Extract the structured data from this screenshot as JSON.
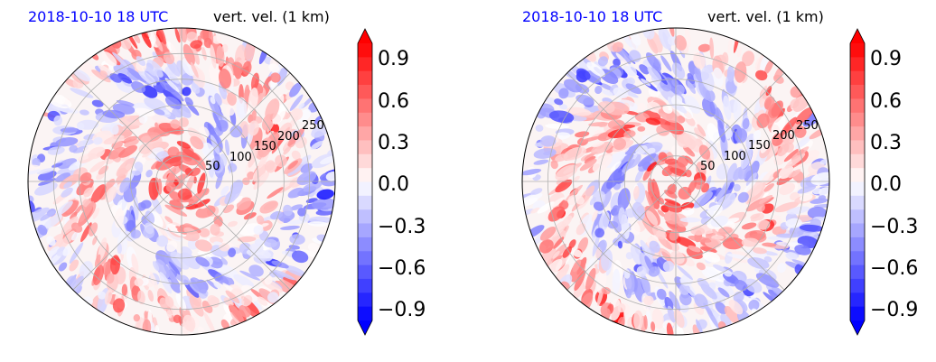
{
  "colors": {
    "positive": "#ff0000",
    "negative": "#0000ff",
    "zero": "#ffffff",
    "grid": "#b0b0b0",
    "date_title": "#0000ff",
    "var_title": "#000000"
  },
  "chart_data": [
    {
      "type": "heatmap",
      "projection": "polar",
      "date_label": "2018-10-10 18 UTC",
      "variable_label": "vert. vel. (1 km)",
      "radial_ticks": [
        "50",
        "100",
        "150",
        "200",
        "250"
      ],
      "rlim": [
        0,
        300
      ],
      "colorbar": {
        "ticks": [
          "−0.9",
          "−0.6",
          "−0.3",
          "0.0",
          "0.3",
          "0.6",
          "0.9"
        ],
        "range": [
          -1.0,
          1.0
        ],
        "extend": "both",
        "cmap": "bwr"
      },
      "grid": true
    },
    {
      "type": "heatmap",
      "projection": "polar",
      "date_label": "2018-10-10 18 UTC",
      "variable_label": "vert. vel. (1 km)",
      "radial_ticks": [
        "50",
        "100",
        "150",
        "200",
        "250"
      ],
      "rlim": [
        0,
        300
      ],
      "colorbar": {
        "ticks": [
          "−0.9",
          "−0.6",
          "−0.3",
          "0.0",
          "0.3",
          "0.6",
          "0.9"
        ],
        "range": [
          -1.0,
          1.0
        ],
        "extend": "both",
        "cmap": "bwr"
      },
      "grid": true
    }
  ]
}
